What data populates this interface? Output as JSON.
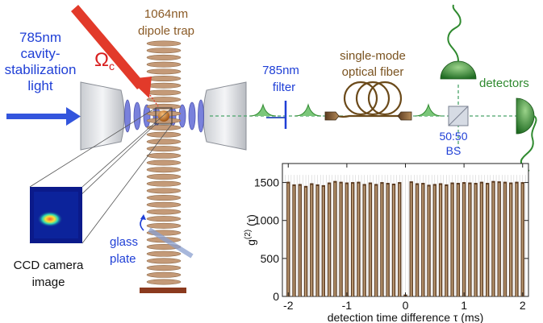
{
  "labels": {
    "cavity_light": [
      "785nm",
      "cavity-",
      "stabilization",
      "light"
    ],
    "omega": "Ω",
    "omega_sub": "c",
    "dipole_trap": [
      "1064nm",
      "dipole trap"
    ],
    "filter": [
      "785nm",
      "filter"
    ],
    "fiber": [
      "single-mode",
      "optical fiber"
    ],
    "detectors": "detectors",
    "bs": [
      "50:50",
      "BS"
    ],
    "glass_plate": [
      "glass",
      "plate"
    ],
    "ccd": [
      "CCD camera",
      "image"
    ]
  },
  "colors": {
    "blue_text": "#1f3fd6",
    "brown_text": "#8a5a26",
    "green_text": "#2f8a2f",
    "red_beam": "#e02020",
    "lattice": "#c49a78",
    "cavity_mode": "#5a63cc",
    "bar_fill": "#5a3a1f",
    "bar_highlight": "#c9a77f"
  },
  "chart_data": {
    "type": "bar",
    "xlabel": "detection time difference τ (ms)",
    "ylabel": "g(2) (τ)",
    "xlim": [
      -2.1,
      2.1
    ],
    "ylim": [
      0,
      1750
    ],
    "xticks": [
      -2,
      -1,
      0,
      1,
      2
    ],
    "yticks": [
      0,
      500,
      1000,
      1500
    ],
    "x": [
      -2.0,
      -1.9,
      -1.8,
      -1.7,
      -1.6,
      -1.5,
      -1.4,
      -1.3,
      -1.2,
      -1.1,
      -1.0,
      -0.9,
      -0.8,
      -0.7,
      -0.6,
      -0.5,
      -0.4,
      -0.3,
      -0.2,
      -0.1,
      0.0,
      0.1,
      0.2,
      0.3,
      0.4,
      0.5,
      0.6,
      0.7,
      0.8,
      0.9,
      1.0,
      1.1,
      1.2,
      1.3,
      1.4,
      1.5,
      1.6,
      1.7,
      1.8,
      1.9,
      2.0
    ],
    "values": [
      1510,
      1475,
      1480,
      1455,
      1490,
      1475,
      1465,
      1500,
      1520,
      1510,
      1500,
      1505,
      1510,
      1480,
      1500,
      1480,
      1505,
      1495,
      1485,
      1505,
      25,
      1515,
      1490,
      1495,
      1470,
      1480,
      1490,
      1475,
      1500,
      1495,
      1505,
      1500,
      1495,
      1510,
      1495,
      1520,
      1515,
      1510,
      1500,
      1510,
      1505
    ]
  }
}
